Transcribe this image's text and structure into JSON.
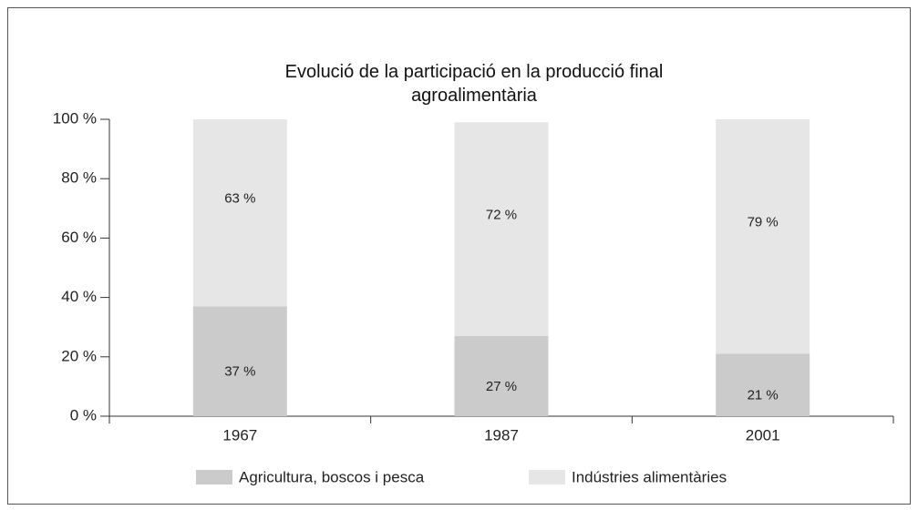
{
  "chart_data": {
    "type": "stacked_bar",
    "title": "Evolució de la participació en la producció final agroalimentària",
    "categories": [
      "1967",
      "1987",
      "2001"
    ],
    "series": [
      {
        "name": "Agricultura, boscos i pesca",
        "color": "#cbcbcb",
        "values": [
          37,
          27,
          21
        ],
        "value_labels": [
          "37 %",
          "27 %",
          "21 %"
        ]
      },
      {
        "name": "Indústries alimentàries",
        "color": "#e6e6e7",
        "values": [
          63,
          72,
          79
        ],
        "value_labels": [
          "63 %",
          "72 %",
          "79 %"
        ]
      }
    ],
    "ylim": [
      0,
      100
    ],
    "yticks": [
      {
        "value": 0,
        "label": "0 %"
      },
      {
        "value": 20,
        "label": "20 %"
      },
      {
        "value": 40,
        "label": "40 %"
      },
      {
        "value": 60,
        "label": "60 %"
      },
      {
        "value": 80,
        "label": "80 %"
      },
      {
        "value": 100,
        "label": "100 %"
      }
    ],
    "legend": "bottom"
  }
}
